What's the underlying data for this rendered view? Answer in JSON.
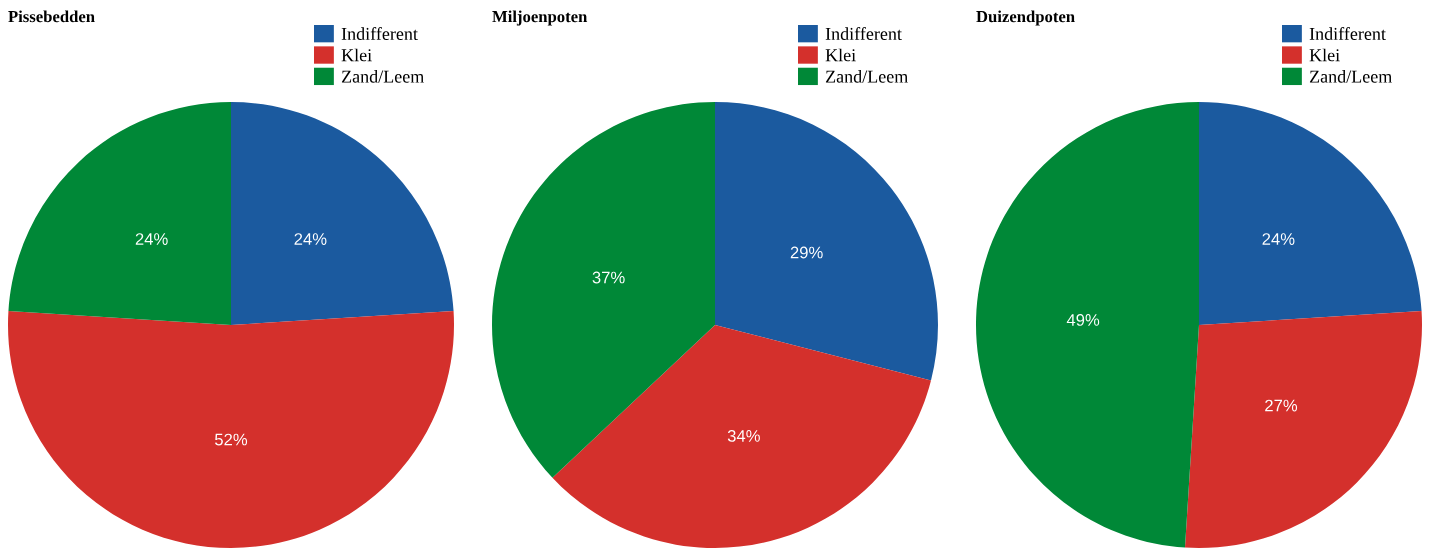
{
  "chart_data": [
    {
      "type": "pie",
      "title": "Pissebedden",
      "categories": [
        "Indifferent",
        "Klei",
        "Zand/Leem"
      ],
      "values": [
        24,
        52,
        24
      ],
      "colors": [
        "#1b5a9f",
        "#d4302c",
        "#008837"
      ],
      "value_labels": [
        "24%",
        "52%",
        "24%"
      ],
      "legend": "top right"
    },
    {
      "type": "pie",
      "title": "Miljoenpoten",
      "categories": [
        "Indifferent",
        "Klei",
        "Zand/Leem"
      ],
      "values": [
        29,
        34,
        37
      ],
      "colors": [
        "#1b5a9f",
        "#d4302c",
        "#008837"
      ],
      "value_labels": [
        "29%",
        "34%",
        "37%"
      ],
      "legend": "top right"
    },
    {
      "type": "pie",
      "title": "Duizendpoten",
      "categories": [
        "Indifferent",
        "Klei",
        "Zand/Leem"
      ],
      "values": [
        24,
        27,
        49
      ],
      "colors": [
        "#1b5a9f",
        "#d4302c",
        "#008837"
      ],
      "value_labels": [
        "24%",
        "27%",
        "49%"
      ],
      "legend": "top right"
    }
  ]
}
